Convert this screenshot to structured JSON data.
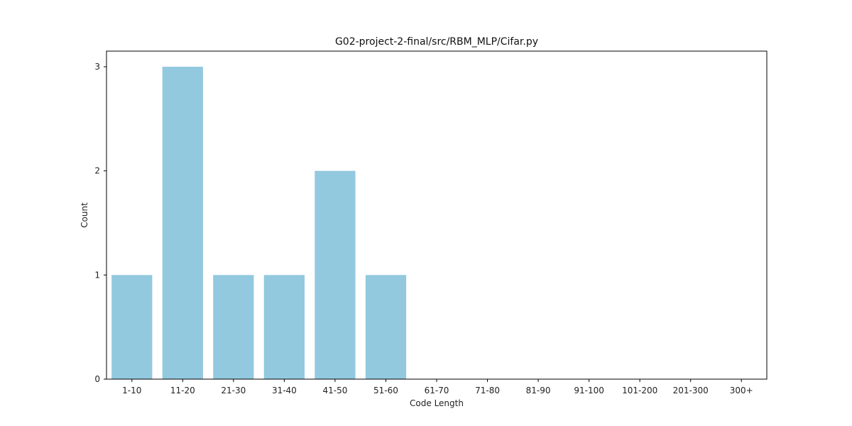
{
  "chart_data": {
    "type": "bar",
    "title": "G02-project-2-final/src/RBM_MLP/Cifar.py",
    "xlabel": "Code Length",
    "ylabel": "Count",
    "categories": [
      "1-10",
      "11-20",
      "21-30",
      "31-40",
      "41-50",
      "51-60",
      "61-70",
      "71-80",
      "81-90",
      "91-100",
      "101-200",
      "201-300",
      "300+"
    ],
    "values": [
      1,
      3,
      1,
      1,
      2,
      1,
      0,
      0,
      0,
      0,
      0,
      0,
      0
    ],
    "ylim": [
      0,
      3.15
    ],
    "yticks": [
      0,
      1,
      2,
      3
    ],
    "bar_color": "#92c9df",
    "grid": false,
    "legend": "none"
  }
}
